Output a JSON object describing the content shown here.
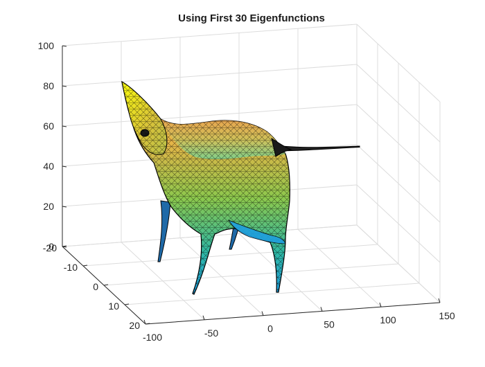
{
  "chart_data": {
    "type": "surface",
    "title": "Using First 30 Eigenfunctions",
    "xlabel": "",
    "ylabel": "",
    "zlabel": "",
    "xlim": [
      -100,
      150
    ],
    "ylim": [
      -20,
      20
    ],
    "zlim": [
      0,
      100
    ],
    "x_ticks": [
      "-100",
      "-50",
      "0",
      "50",
      "100",
      "150"
    ],
    "y_ticks": [
      "-20",
      "-10",
      "0",
      "10",
      "20"
    ],
    "z_ticks": [
      "0",
      "20",
      "40",
      "60",
      "80",
      "100"
    ],
    "grid": true,
    "colormap": [
      "#3e26a8",
      "#1f9fe0",
      "#2fb8a3",
      "#7ed04a",
      "#e0c03a",
      "#f9fb0e"
    ],
    "mesh_color": "#000000",
    "surface_description_color_top": "#f9fb0e",
    "surface_description_color_bottom": "#1f9fe0"
  }
}
